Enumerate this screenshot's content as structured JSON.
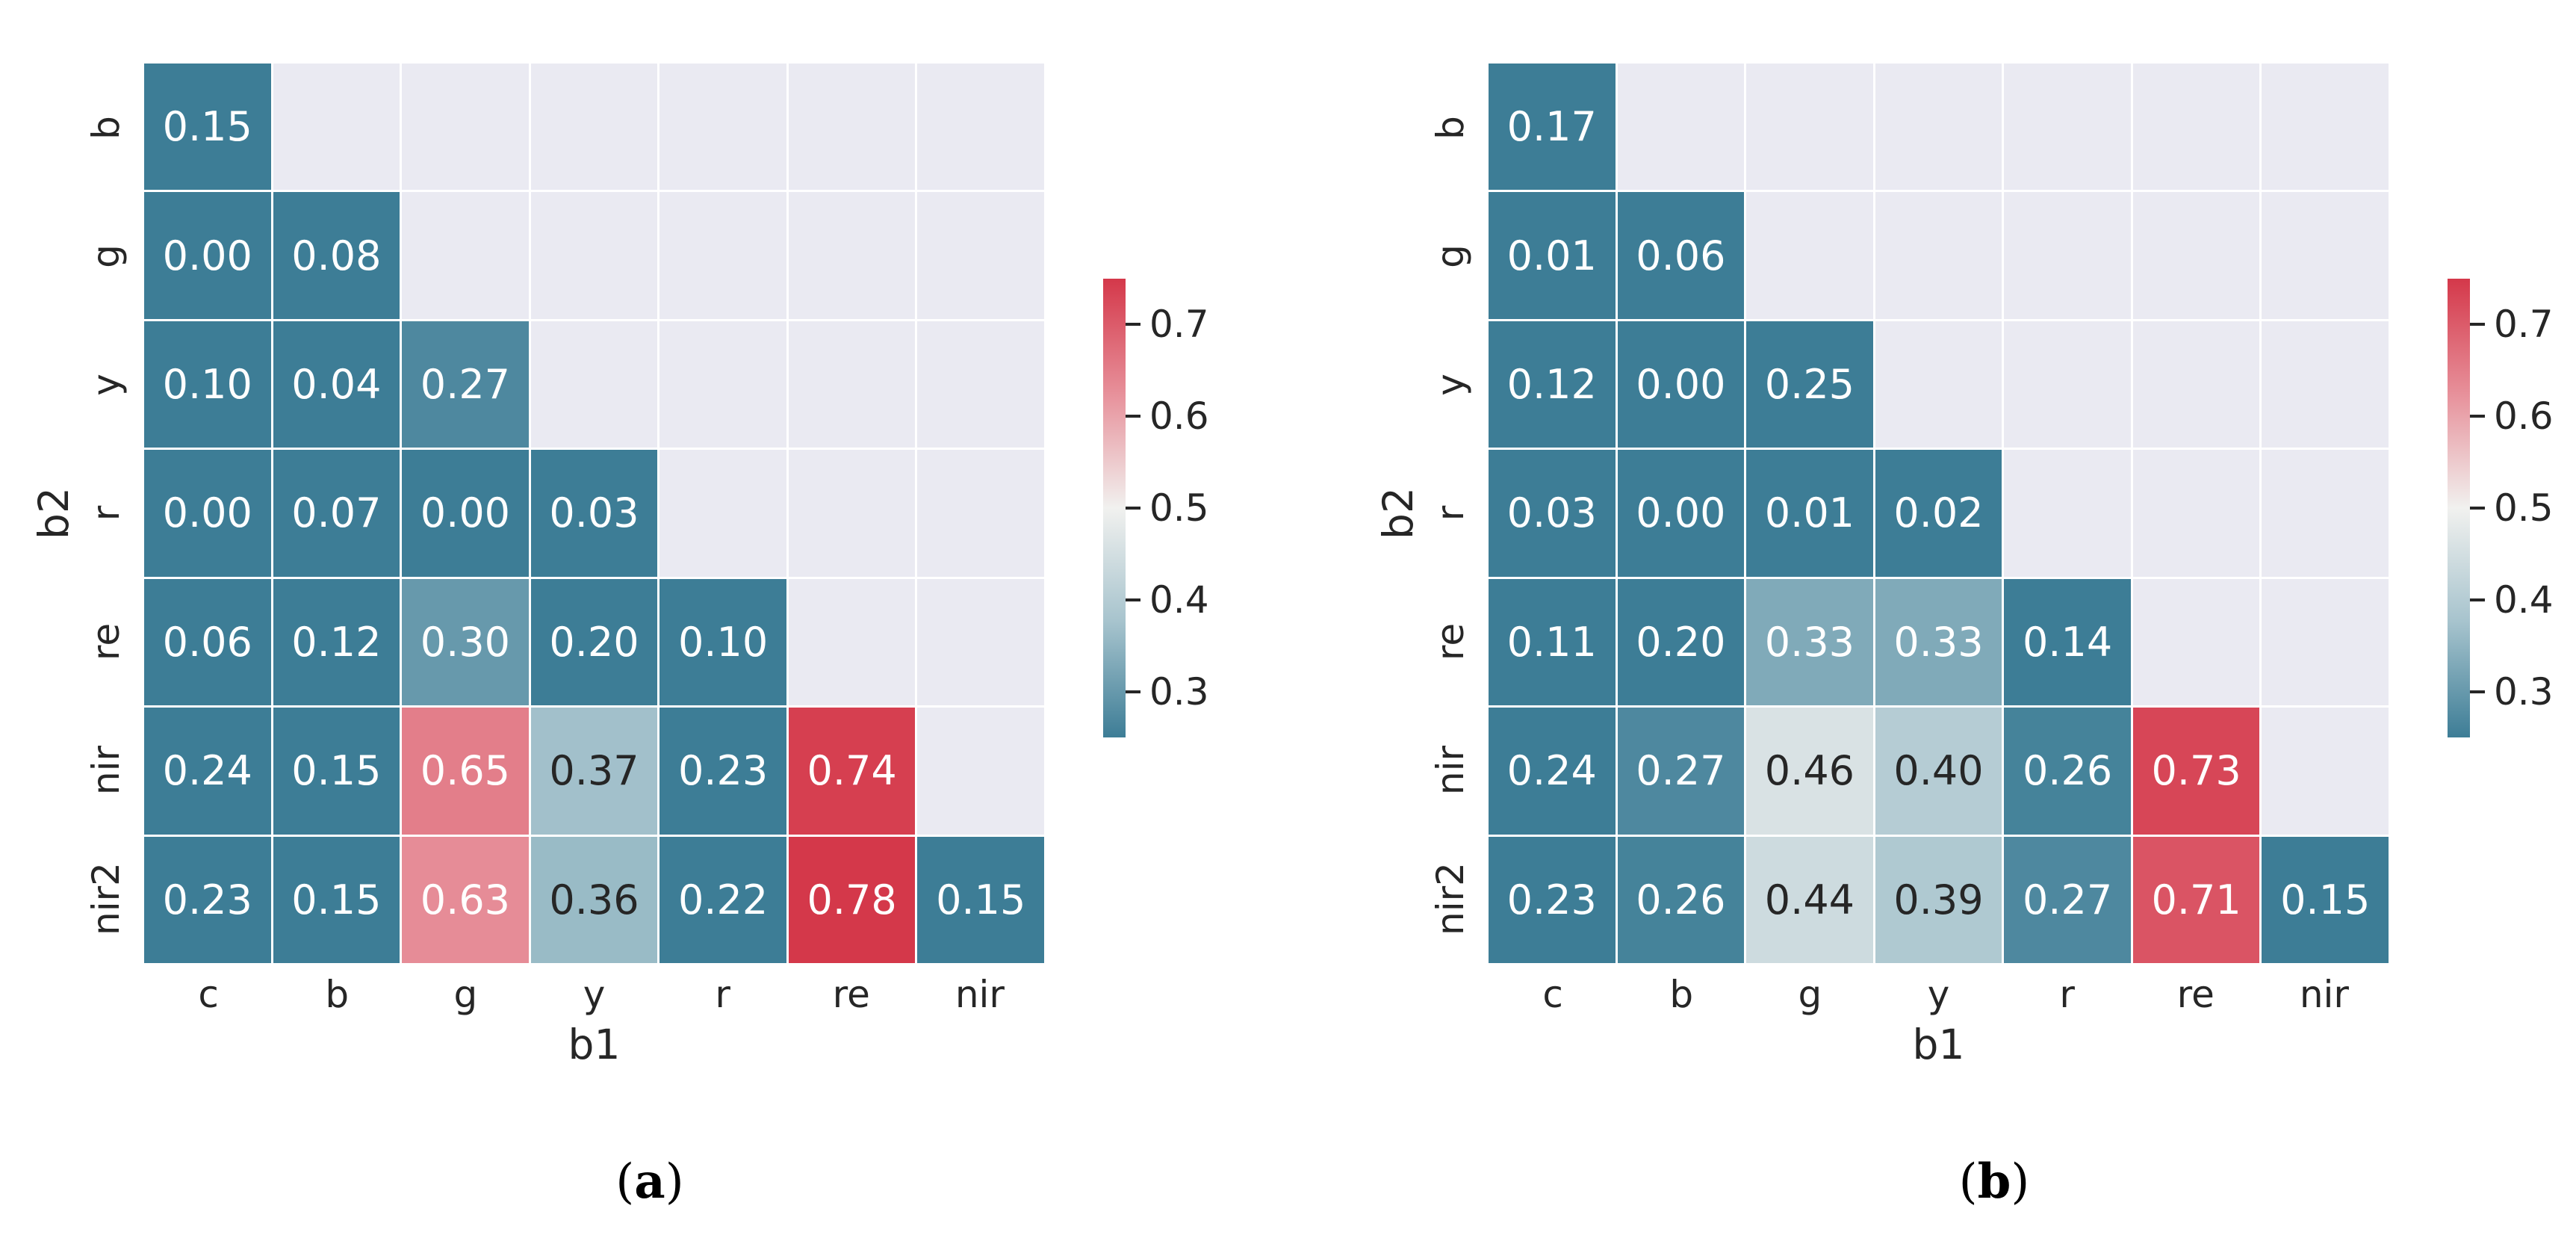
{
  "figure": {
    "background": "#ffffff",
    "axes_background": "#eaeaf2",
    "grid_line_color": "#ffffff",
    "tick_text_color": "#262626",
    "annotation_text_dark": "#262626",
    "annotation_text_light": "#ffffff"
  },
  "colormap": {
    "vmin": 0.25,
    "vmax": 0.75,
    "luminance_threshold": 0.408,
    "stops": [
      [
        0.25,
        "#3d7d96"
      ],
      [
        0.375,
        "#a6c3cd"
      ],
      [
        0.5,
        "#f1f1ef"
      ],
      [
        0.625,
        "#e7909a"
      ],
      [
        0.75,
        "#d4384a"
      ]
    ]
  },
  "chart_data": [
    {
      "type": "heatmap",
      "caption": {
        "open": "(",
        "letter": "a",
        "close": ")"
      },
      "xlabel": "b1",
      "ylabel": "b2",
      "x_categories": [
        "c",
        "b",
        "g",
        "y",
        "r",
        "re",
        "nir"
      ],
      "y_categories": [
        "b",
        "g",
        "y",
        "r",
        "re",
        "nir",
        "nir2"
      ],
      "rows": [
        [
          0.15
        ],
        [
          0.0,
          0.08
        ],
        [
          0.1,
          0.04,
          0.27
        ],
        [
          0.0,
          0.07,
          0.0,
          0.03
        ],
        [
          0.06,
          0.12,
          0.3,
          0.2,
          0.1
        ],
        [
          0.24,
          0.15,
          0.65,
          0.37,
          0.23,
          0.74
        ],
        [
          0.23,
          0.15,
          0.63,
          0.36,
          0.22,
          0.78,
          0.15
        ]
      ],
      "colorbar": {
        "tick_labels": [
          "0.7",
          "0.6",
          "0.5",
          "0.4",
          "0.3"
        ],
        "tick_values": [
          0.7,
          0.6,
          0.5,
          0.4,
          0.3
        ]
      },
      "legend_position": "right",
      "grid": true
    },
    {
      "type": "heatmap",
      "caption": {
        "open": "(",
        "letter": "b",
        "close": ")"
      },
      "xlabel": "b1",
      "ylabel": "b2",
      "x_categories": [
        "c",
        "b",
        "g",
        "y",
        "r",
        "re",
        "nir"
      ],
      "y_categories": [
        "b",
        "g",
        "y",
        "r",
        "re",
        "nir",
        "nir2"
      ],
      "rows": [
        [
          0.17
        ],
        [
          0.01,
          0.06
        ],
        [
          0.12,
          0.0,
          0.25
        ],
        [
          0.03,
          0.0,
          0.01,
          0.02
        ],
        [
          0.11,
          0.2,
          0.33,
          0.33,
          0.14
        ],
        [
          0.24,
          0.27,
          0.46,
          0.4,
          0.26,
          0.73
        ],
        [
          0.23,
          0.26,
          0.44,
          0.39,
          0.27,
          0.71,
          0.15
        ]
      ],
      "colorbar": {
        "tick_labels": [
          "0.7",
          "0.6",
          "0.5",
          "0.4",
          "0.3"
        ],
        "tick_values": [
          0.7,
          0.6,
          0.5,
          0.4,
          0.3
        ]
      },
      "legend_position": "right",
      "grid": true
    }
  ]
}
